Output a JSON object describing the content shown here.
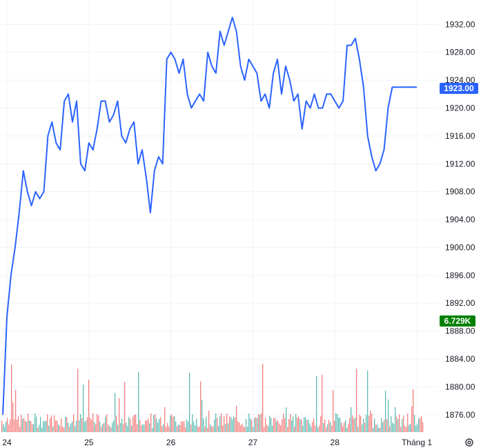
{
  "chart_data": {
    "type": "line",
    "title": "",
    "xlabel": "",
    "ylabel": "",
    "x_ticks": [
      "24",
      "25",
      "26",
      "27",
      "28",
      "Tháng 1"
    ],
    "y_ticks": [
      "1876.00",
      "1880.00",
      "1884.00",
      "1888.00",
      "1892.00",
      "1896.00",
      "1900.00",
      "1904.00",
      "1908.00",
      "1912.00",
      "1916.00",
      "1920.00",
      "1924.00",
      "1928.00",
      "1932.00"
    ],
    "ylim": [
      1873.5,
      1935.5
    ],
    "grid": true,
    "price_series": {
      "name": "",
      "color": "#2962ff",
      "x": [
        23.95,
        24.0,
        24.05,
        24.1,
        24.15,
        24.2,
        24.25,
        24.3,
        24.35,
        24.4,
        24.45,
        24.5,
        24.55,
        24.6,
        24.65,
        24.7,
        24.75,
        24.8,
        24.85,
        24.9,
        24.95,
        25.0,
        25.05,
        25.1,
        25.15,
        25.2,
        25.25,
        25.3,
        25.35,
        25.4,
        25.45,
        25.5,
        25.55,
        25.6,
        25.65,
        25.7,
        25.75,
        25.8,
        25.85,
        25.9,
        25.95,
        26.0,
        26.05,
        26.1,
        26.15,
        26.2,
        26.25,
        26.3,
        26.35,
        26.4,
        26.45,
        26.5,
        26.55,
        26.6,
        26.65,
        26.7,
        26.75,
        26.8,
        26.85,
        26.9,
        26.95,
        27.0,
        27.05,
        27.1,
        27.15,
        27.2,
        27.25,
        27.3,
        27.35,
        27.4,
        27.45,
        27.5,
        27.55,
        27.6,
        27.65,
        27.7,
        27.75,
        27.8,
        27.85,
        27.9,
        27.95,
        28.0,
        28.05,
        28.1,
        28.15,
        28.2,
        28.25,
        28.3,
        28.35,
        28.4,
        28.45,
        28.5,
        28.55,
        28.6,
        28.65,
        28.7,
        28.75,
        28.8,
        28.85,
        28.9,
        28.95,
        29.0
      ],
      "y": [
        1876,
        1890,
        1896,
        1900,
        1905,
        1911,
        1908,
        1906,
        1908,
        1907,
        1908,
        1916,
        1918,
        1915,
        1914,
        1921,
        1922,
        1918,
        1921,
        1912,
        1911,
        1915,
        1914,
        1917,
        1921,
        1921,
        1918,
        1919,
        1921,
        1916,
        1915,
        1917,
        1918,
        1912,
        1914,
        1910,
        1905,
        1911,
        1913,
        1912,
        1927,
        1928,
        1927,
        1925,
        1927,
        1922,
        1920,
        1921,
        1922,
        1921,
        1928,
        1926,
        1925,
        1931,
        1929,
        1931,
        1933,
        1931,
        1926,
        1924,
        1927,
        1926,
        1925,
        1921,
        1922,
        1920,
        1925,
        1927,
        1922,
        1926,
        1924,
        1921,
        1922,
        1917,
        1921,
        1920,
        1922,
        1920,
        1920,
        1922,
        1922,
        1921,
        1920,
        1921,
        1929,
        1929,
        1930,
        1927,
        1923,
        1916,
        1913,
        1911,
        1912,
        1914,
        1920,
        1923,
        1923,
        1923,
        1923,
        1923,
        1923,
        1923
      ]
    },
    "last_price_label": "1923.00",
    "last_price_color": "#2962ff",
    "volume_label": "6.729K",
    "volume_label_color": "#008000",
    "volume_up_color": "#26a69a",
    "volume_down_color": "#ef5350"
  },
  "settings_icon": "gear-icon"
}
